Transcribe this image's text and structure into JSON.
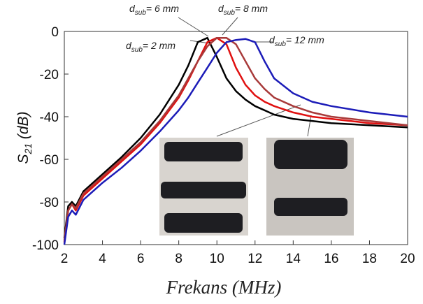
{
  "chart_data": {
    "type": "line",
    "xlabel": "Frekans (MHz)",
    "ylabel": {
      "base": "S",
      "sub": "21",
      "rest": " (dB)"
    },
    "x": [
      2,
      2.2,
      2.4,
      2.6,
      3,
      4,
      5,
      6,
      7,
      8,
      8.5,
      9,
      9.5,
      10,
      10.5,
      11,
      11.5,
      12,
      12.5,
      13,
      14,
      15,
      16,
      18,
      20
    ],
    "series": [
      {
        "color": "#000000",
        "values": [
          -97,
          -82,
          -80,
          -82,
          -75,
          -67,
          -59,
          -50,
          -39,
          -25,
          -16,
          -5,
          -3,
          -12,
          -22,
          -28,
          -32,
          -35,
          -37,
          -39,
          -41,
          -42,
          -43,
          -44,
          -45
        ]
      },
      {
        "color": "#e01010",
        "values": [
          -99,
          -84,
          -81,
          -84,
          -77,
          -69,
          -61,
          -53,
          -43,
          -31,
          -23,
          -14,
          -5,
          -3,
          -6,
          -17,
          -25,
          -30,
          -33,
          -35,
          -38,
          -40,
          -41,
          -43,
          -44
        ]
      },
      {
        "color": "#a83a3a",
        "values": [
          -98,
          -84,
          -81,
          -83,
          -76,
          -68,
          -60,
          -52,
          -42,
          -30,
          -22,
          -14,
          -7,
          -3,
          -3,
          -6,
          -14,
          -22,
          -27,
          -31,
          -35,
          -38,
          -40,
          -42,
          -44
        ]
      },
      {
        "color": "#1c1cb8",
        "values": [
          -100,
          -87,
          -84,
          -86,
          -79,
          -71,
          -64,
          -56,
          -47,
          -37,
          -31,
          -24,
          -17,
          -10,
          -5,
          -4,
          -3.5,
          -5,
          -14,
          -22,
          -29,
          -33,
          -35,
          -38,
          -40
        ]
      }
    ],
    "xlim": [
      2,
      20
    ],
    "xticks": [
      2,
      4,
      6,
      8,
      10,
      12,
      14,
      16,
      18,
      20
    ],
    "ylim": [
      -100,
      0
    ],
    "yticks": [
      -100,
      -80,
      -60,
      -40,
      -20,
      0
    ],
    "annotations": [
      {
        "base": "d",
        "sub": "sub",
        "text": "= 2 mm"
      },
      {
        "base": "d",
        "sub": "sub",
        "text": "= 6 mm"
      },
      {
        "base": "d",
        "sub": "sub",
        "text": "= 8 mm"
      },
      {
        "base": "d",
        "sub": "sub",
        "text": "= 12 mm"
      }
    ]
  }
}
